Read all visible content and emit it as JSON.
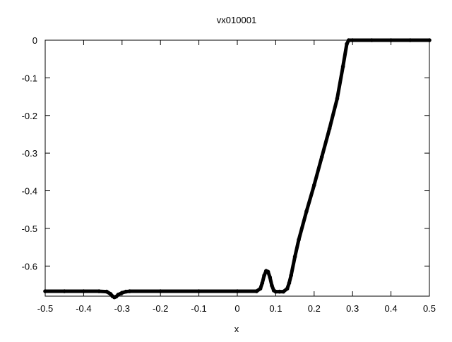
{
  "chart_data": {
    "type": "scatter",
    "title": "vx010001",
    "xlabel": "x",
    "ylabel": "",
    "xlim": [
      -0.5,
      0.5
    ],
    "ylim": [
      -0.68,
      0.0
    ],
    "xticks": [
      -0.5,
      -0.4,
      -0.3,
      -0.2,
      -0.1,
      0,
      0.1,
      0.2,
      0.3,
      0.4,
      0.5
    ],
    "xtick_labels": [
      "-0.5",
      "-0.4",
      "-0.3",
      "-0.2",
      "-0.1",
      "0",
      "0.1",
      "0.2",
      "0.3",
      "0.4",
      "0.5"
    ],
    "yticks": [
      0,
      -0.1,
      -0.2,
      -0.3,
      -0.4,
      -0.5,
      -0.6
    ],
    "ytick_labels": [
      "0",
      "-0.1",
      "-0.2",
      "-0.3",
      "-0.4",
      "-0.5",
      "-0.6"
    ],
    "grid": false,
    "marker_color": "#000000",
    "series": [
      {
        "points": [
          [
            -0.5,
            -0.667
          ],
          [
            -0.45,
            -0.667
          ],
          [
            -0.4,
            -0.667
          ],
          [
            -0.36,
            -0.667
          ],
          [
            -0.34,
            -0.668
          ],
          [
            -0.33,
            -0.674
          ],
          [
            -0.325,
            -0.68
          ],
          [
            -0.32,
            -0.683
          ],
          [
            -0.315,
            -0.681
          ],
          [
            -0.31,
            -0.676
          ],
          [
            -0.3,
            -0.671
          ],
          [
            -0.29,
            -0.668
          ],
          [
            -0.28,
            -0.667
          ],
          [
            -0.2,
            -0.667
          ],
          [
            -0.1,
            -0.667
          ],
          [
            0.0,
            -0.667
          ],
          [
            0.05,
            -0.667
          ],
          [
            0.06,
            -0.66
          ],
          [
            0.065,
            -0.645
          ],
          [
            0.07,
            -0.625
          ],
          [
            0.075,
            -0.613
          ],
          [
            0.08,
            -0.615
          ],
          [
            0.085,
            -0.63
          ],
          [
            0.09,
            -0.652
          ],
          [
            0.095,
            -0.665
          ],
          [
            0.1,
            -0.668
          ],
          [
            0.11,
            -0.668
          ],
          [
            0.12,
            -0.668
          ],
          [
            0.13,
            -0.66
          ],
          [
            0.135,
            -0.645
          ],
          [
            0.14,
            -0.625
          ],
          [
            0.15,
            -0.575
          ],
          [
            0.16,
            -0.53
          ],
          [
            0.18,
            -0.455
          ],
          [
            0.2,
            -0.385
          ],
          [
            0.22,
            -0.31
          ],
          [
            0.24,
            -0.235
          ],
          [
            0.26,
            -0.155
          ],
          [
            0.275,
            -0.07
          ],
          [
            0.285,
            -0.01
          ],
          [
            0.29,
            0.0
          ],
          [
            0.3,
            0.0
          ],
          [
            0.35,
            0.0
          ],
          [
            0.4,
            0.0
          ],
          [
            0.45,
            0.0
          ],
          [
            0.5,
            0.0
          ]
        ]
      }
    ]
  }
}
